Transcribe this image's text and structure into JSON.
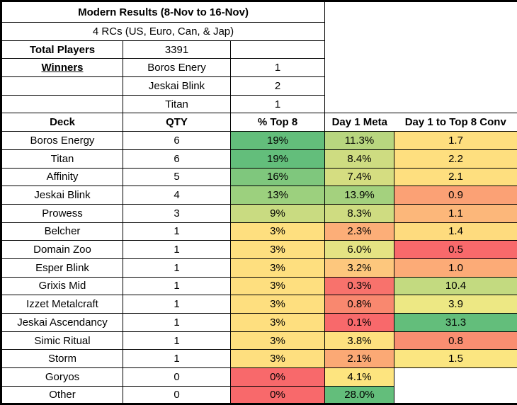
{
  "header": {
    "title": "Modern Results (8-Nov to 16-Nov)",
    "subtitle": "4 RCs (US, Euro, Can, & Jap)"
  },
  "summary": {
    "total_players_label": "Total Players",
    "total_players_value": "3391",
    "winners_label": "Winners",
    "winners": [
      {
        "deck": "Boros Enery",
        "count": "1"
      },
      {
        "deck": "Jeskai Blink",
        "count": "2"
      },
      {
        "deck": "Titan",
        "count": "1"
      }
    ]
  },
  "table": {
    "columns": {
      "deck": "Deck",
      "qty": "QTY",
      "top8": "% Top 8",
      "meta": "Day 1 Meta",
      "conv": "Day 1 to Top 8 Conv"
    },
    "rows": [
      {
        "deck": "Boros Energy",
        "qty": "6",
        "top8": "19%",
        "top8_bg": "#63be7b",
        "meta": "11.3%",
        "meta_bg": "#b8d67f",
        "conv": "1.7",
        "conv_bg": "#fedf7f"
      },
      {
        "deck": "Titan",
        "qty": "6",
        "top8": "19%",
        "top8_bg": "#63be7b",
        "meta": "8.4%",
        "meta_bg": "#cedc81",
        "conv": "2.2",
        "conv_bg": "#fedf7f"
      },
      {
        "deck": "Affinity",
        "qty": "5",
        "top8": "16%",
        "top8_bg": "#7fc77d",
        "meta": "7.4%",
        "meta_bg": "#d5dd81",
        "conv": "2.1",
        "conv_bg": "#fedf7f"
      },
      {
        "deck": "Jeskai Blink",
        "qty": "4",
        "top8": "13%",
        "top8_bg": "#9cd07e",
        "meta": "13.9%",
        "meta_bg": "#a4d17e",
        "conv": "0.9",
        "conv_bg": "#fba175"
      },
      {
        "deck": "Prowess",
        "qty": "3",
        "top8": "9%",
        "top8_bg": "#c9db81",
        "meta": "8.3%",
        "meta_bg": "#cfdc81",
        "conv": "1.1",
        "conv_bg": "#fcb77a"
      },
      {
        "deck": "Belcher",
        "qty": "1",
        "top8": "3%",
        "top8_bg": "#fedf7f",
        "meta": "2.3%",
        "meta_bg": "#fcae78",
        "conv": "1.4",
        "conv_bg": "#fedb7e"
      },
      {
        "deck": "Domain Zoo",
        "qty": "1",
        "top8": "3%",
        "top8_bg": "#fedf7f",
        "meta": "6.0%",
        "meta_bg": "#e4e383",
        "conv": "0.5",
        "conv_bg": "#f8696b"
      },
      {
        "deck": "Esper Blink",
        "qty": "1",
        "top8": "3%",
        "top8_bg": "#fedf7f",
        "meta": "3.2%",
        "meta_bg": "#fdc77d",
        "conv": "1.0",
        "conv_bg": "#fcab77"
      },
      {
        "deck": "Grixis Mid",
        "qty": "1",
        "top8": "3%",
        "top8_bg": "#fedf7f",
        "meta": "0.3%",
        "meta_bg": "#f8726c",
        "conv": "10.4",
        "conv_bg": "#c3da80"
      },
      {
        "deck": "Izzet Metalcraft",
        "qty": "1",
        "top8": "3%",
        "top8_bg": "#fedf7f",
        "meta": "0.8%",
        "meta_bg": "#f9886f",
        "conv": "3.9",
        "conv_bg": "#ede884"
      },
      {
        "deck": "Jeskai Ascendancy",
        "qty": "1",
        "top8": "3%",
        "top8_bg": "#fedf7f",
        "meta": "0.1%",
        "meta_bg": "#f8696b",
        "conv": "31.3",
        "conv_bg": "#63be7b"
      },
      {
        "deck": "Simic Ritual",
        "qty": "1",
        "top8": "3%",
        "top8_bg": "#fedf7f",
        "meta": "3.8%",
        "meta_bg": "#fee07f",
        "conv": "0.8",
        "conv_bg": "#f98e71"
      },
      {
        "deck": "Storm",
        "qty": "1",
        "top8": "3%",
        "top8_bg": "#fedf7f",
        "meta": "2.1%",
        "meta_bg": "#fba975",
        "conv": "1.5",
        "conv_bg": "#fbe681"
      },
      {
        "deck": "Goryos",
        "qty": "0",
        "top8": "0%",
        "top8_bg": "#f8696b",
        "meta": "4.1%",
        "meta_bg": "#fde47f",
        "conv": "",
        "conv_bg": "#ffffff",
        "thick_top": true,
        "conv_rowspan": 2
      },
      {
        "deck": "Other",
        "qty": "0",
        "top8": "0%",
        "top8_bg": "#f8696b",
        "meta": "28.0%",
        "meta_bg": "#63be7b",
        "conv_skip": true
      }
    ]
  },
  "colors": {
    "border": "#000000",
    "background": "#ffffff",
    "scale_green": "#63be7b",
    "scale_yellow": "#fedf7f",
    "scale_red": "#f8696b"
  }
}
